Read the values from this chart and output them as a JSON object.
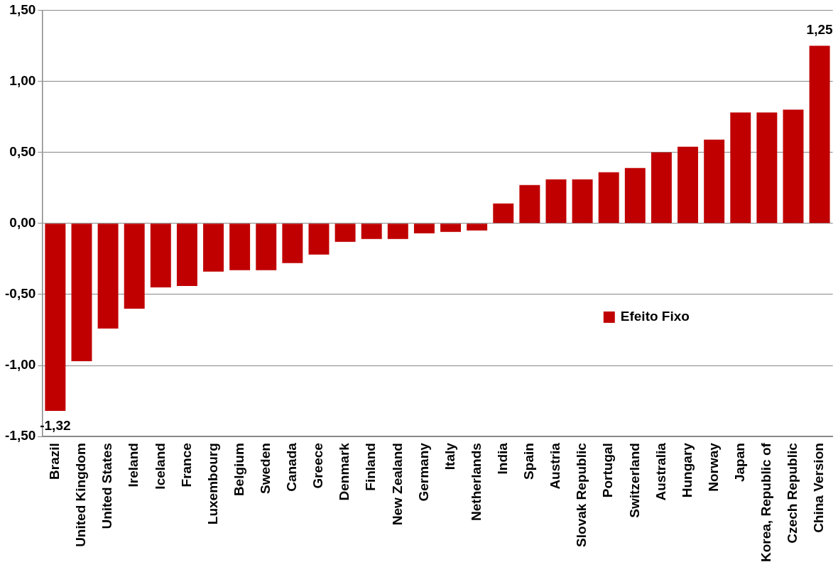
{
  "chart_data": {
    "type": "bar",
    "categories": [
      "Brazil",
      "United Kingdom",
      "United States",
      "Ireland",
      "Iceland",
      "France",
      "Luxembourg",
      "Belgium",
      "Sweden",
      "Canada",
      "Greece",
      "Denmark",
      "Finland",
      "New Zealand",
      "Germany",
      "Italy",
      "Netherlands",
      "India",
      "Spain",
      "Austria",
      "Slovak Republic",
      "Portugal",
      "Switzerland",
      "Australia",
      "Hungary",
      "Norway",
      "Japan",
      "Korea, Republic of",
      "Czech Republic",
      "China Version"
    ],
    "series": [
      {
        "name": "Efeito Fixo",
        "color": "#c00000",
        "values": [
          -1.32,
          -0.97,
          -0.74,
          -0.6,
          -0.45,
          -0.44,
          -0.34,
          -0.33,
          -0.33,
          -0.28,
          -0.22,
          -0.13,
          -0.11,
          -0.11,
          -0.07,
          -0.06,
          -0.05,
          0.14,
          0.27,
          0.31,
          0.31,
          0.36,
          0.39,
          0.5,
          0.54,
          0.59,
          0.78,
          0.78,
          0.8,
          1.25
        ],
        "value_labels": [
          "-1,32",
          null,
          null,
          null,
          null,
          null,
          null,
          null,
          null,
          null,
          null,
          null,
          null,
          null,
          null,
          null,
          null,
          null,
          null,
          null,
          null,
          null,
          null,
          null,
          null,
          null,
          null,
          null,
          null,
          "1,25"
        ]
      }
    ],
    "ylim": [
      -1.5,
      1.5
    ],
    "yticks": [
      {
        "value": -1.5,
        "label": "-1,50"
      },
      {
        "value": -1,
        "label": "-1,00"
      },
      {
        "value": -0.5,
        "label": "-0,50"
      },
      {
        "value": 0,
        "label": "0,00"
      },
      {
        "value": 0.5,
        "label": "0,50"
      },
      {
        "value": 1,
        "label": "1,00"
      },
      {
        "value": 1.5,
        "label": "1,50"
      }
    ],
    "grid": "y",
    "legend": "right"
  }
}
